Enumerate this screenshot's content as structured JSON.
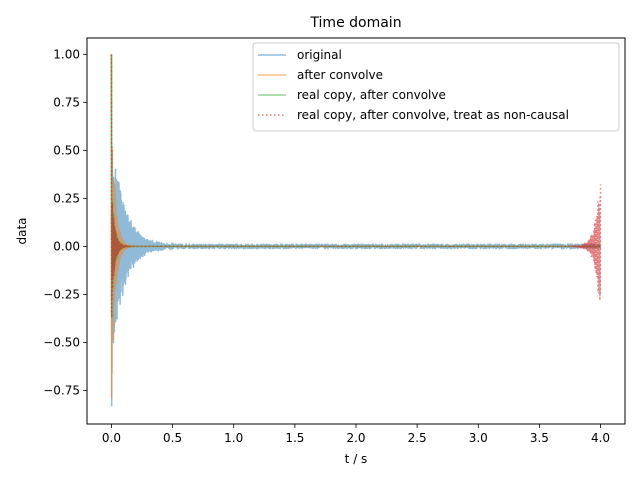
{
  "chart_data": {
    "type": "line",
    "title": "Time domain",
    "xlabel": "t / s",
    "ylabel": "data",
    "xlim": [
      -0.2,
      4.2
    ],
    "ylim": [
      -0.925,
      1.085
    ],
    "xticks": [
      "0.0",
      "0.5",
      "1.0",
      "1.5",
      "2.0",
      "2.5",
      "3.0",
      "3.5",
      "4.0"
    ],
    "yticks": [
      "−0.75",
      "−0.50",
      "−0.25",
      "0.00",
      "0.25",
      "0.50",
      "0.75",
      "1.00"
    ],
    "grid": false,
    "legend_position": "upper right",
    "series": [
      {
        "name": "original",
        "color": "#1f77b4",
        "style": "solid",
        "opacity": 0.5,
        "model": {
          "amplitude": 0.62,
          "decay_time": 0.1,
          "noise_floor": 0.012,
          "start": 0.0,
          "end": 4.0,
          "spike": 1.0,
          "min": -0.83
        }
      },
      {
        "name": "after convolve",
        "color": "#ff7f0e",
        "style": "solid",
        "opacity": 0.5,
        "model": {
          "amplitude": 0.8,
          "decay_time": 0.03,
          "noise_floor": 0.0,
          "start": 0.0,
          "end": 4.0,
          "spike": 1.0,
          "min": -0.79
        }
      },
      {
        "name": "real copy, after convolve",
        "color": "#2ca02c",
        "style": "solid",
        "opacity": 0.5,
        "model": {
          "amplitude": 0.35,
          "decay_time": 0.025,
          "noise_floor": 0.0,
          "start": 0.0,
          "end": 4.0,
          "spike": 1.0,
          "min": -0.37
        }
      },
      {
        "name": "real copy, after convolve, treat as non-causal",
        "color": "#d62728",
        "style": "dotted",
        "opacity": 0.6,
        "model": {
          "amplitude": 0.35,
          "decay_time": 0.025,
          "noise_floor": 0.0,
          "start": 0.0,
          "end": 4.0,
          "spike": 1.0,
          "min": -0.37,
          "tail_amplitude": 0.41,
          "tail_decay": 0.04
        }
      }
    ]
  }
}
